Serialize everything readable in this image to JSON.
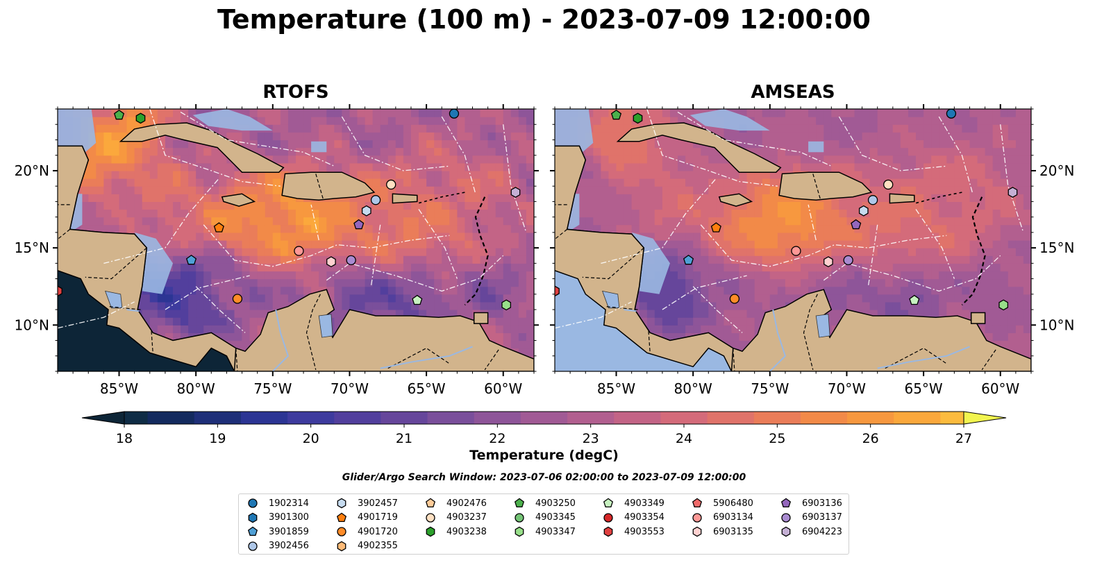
{
  "figure": {
    "title": "Temperature (100 m) - 2023-07-09 12:00:00",
    "search_window": "Glider/Argo Search Window: 2023-07-06 02:00:00 to 2023-07-09 12:00:00",
    "colors": {
      "land": "#d2b48c",
      "ocean": "#9ab8e2",
      "grid": "#ffffff",
      "coast": "#000000"
    }
  },
  "chart_data": [
    {
      "type": "heatmap",
      "title": "RTOFS",
      "xlim": [
        -89,
        -58
      ],
      "ylim": [
        7,
        24
      ],
      "x_ticks": [
        -85,
        -80,
        -75,
        -70,
        -65,
        -60
      ],
      "x_tick_labels": [
        "85°W",
        "80°W",
        "75°W",
        "70°W",
        "65°W",
        "60°W"
      ],
      "y_ticks": [
        10,
        15,
        20
      ],
      "y_tick_labels": [
        "10°N",
        "15°N",
        "20°N"
      ],
      "y_labels_side": "left",
      "grid": true,
      "field_summary": "warm 25-27 degC core across central Caribbean and Yucatan Channel; cool 19-21 degC along Nicaragua/Colombia/Venezuela coasts",
      "floats": [
        {
          "id": "1902314",
          "lon": -63.2,
          "lat": 23.7
        },
        {
          "id": "4903250",
          "lon": -85.0,
          "lat": 23.6
        },
        {
          "id": "4903238",
          "lon": -83.6,
          "lat": 23.4
        },
        {
          "id": "4903237",
          "lon": -67.3,
          "lat": 19.1
        },
        {
          "id": "6904223",
          "lon": -59.2,
          "lat": 18.6
        },
        {
          "id": "3902456",
          "lon": -68.3,
          "lat": 18.1
        },
        {
          "id": "3902457",
          "lon": -68.9,
          "lat": 17.4
        },
        {
          "id": "6903136",
          "lon": -69.4,
          "lat": 16.5
        },
        {
          "id": "4901719",
          "lon": -78.5,
          "lat": 16.3
        },
        {
          "id": "6903134",
          "lon": -73.3,
          "lat": 14.8
        },
        {
          "id": "6903135",
          "lon": -71.2,
          "lat": 14.1
        },
        {
          "id": "6903137",
          "lon": -69.9,
          "lat": 14.2
        },
        {
          "id": "3901859",
          "lon": -80.3,
          "lat": 14.2
        },
        {
          "id": "4901720",
          "lon": -77.3,
          "lat": 11.7
        },
        {
          "id": "4903349",
          "lon": -65.6,
          "lat": 11.6
        },
        {
          "id": "4903347",
          "lon": -59.8,
          "lat": 11.3
        },
        {
          "id": "4903553",
          "lon": -89.0,
          "lat": 12.2
        }
      ]
    },
    {
      "type": "heatmap",
      "title": "AMSEAS",
      "xlim": [
        -89,
        -58
      ],
      "ylim": [
        7,
        24
      ],
      "x_ticks": [
        -85,
        -80,
        -75,
        -70,
        -65,
        -60
      ],
      "x_tick_labels": [
        "85°W",
        "80°W",
        "75°W",
        "70°W",
        "65°W",
        "60°W"
      ],
      "y_ticks": [
        10,
        15,
        20
      ],
      "y_tick_labels": [
        "10°N",
        "15°N",
        "20°N"
      ],
      "y_labels_side": "right",
      "grid": true,
      "field_summary": "smoother field; warm 25-27 degC core in central Caribbean; cooler 20-22 degC near southern coasts",
      "floats": [
        {
          "id": "1902314",
          "lon": -63.2,
          "lat": 23.7
        },
        {
          "id": "4903250",
          "lon": -85.0,
          "lat": 23.6
        },
        {
          "id": "4903238",
          "lon": -83.6,
          "lat": 23.4
        },
        {
          "id": "4903237",
          "lon": -67.3,
          "lat": 19.1
        },
        {
          "id": "6904223",
          "lon": -59.2,
          "lat": 18.6
        },
        {
          "id": "3902456",
          "lon": -68.3,
          "lat": 18.1
        },
        {
          "id": "3902457",
          "lon": -68.9,
          "lat": 17.4
        },
        {
          "id": "6903136",
          "lon": -69.4,
          "lat": 16.5
        },
        {
          "id": "4901719",
          "lon": -78.5,
          "lat": 16.3
        },
        {
          "id": "6903134",
          "lon": -73.3,
          "lat": 14.8
        },
        {
          "id": "6903135",
          "lon": -71.2,
          "lat": 14.1
        },
        {
          "id": "6903137",
          "lon": -69.9,
          "lat": 14.2
        },
        {
          "id": "3901859",
          "lon": -80.3,
          "lat": 14.2
        },
        {
          "id": "4901720",
          "lon": -77.3,
          "lat": 11.7
        },
        {
          "id": "4903349",
          "lon": -65.6,
          "lat": 11.6
        },
        {
          "id": "4903347",
          "lon": -59.8,
          "lat": 11.3
        },
        {
          "id": "4903553",
          "lon": -89.0,
          "lat": 12.2
        }
      ]
    }
  ],
  "colorbar": {
    "label": "Temperature (degC)",
    "min": 18,
    "max": 27,
    "step": 0.5,
    "extend": "both",
    "ticks": [
      18,
      19,
      20,
      21,
      22,
      23,
      24,
      25,
      26,
      27
    ],
    "colors": [
      "#0f2c45",
      "#132a5e",
      "#1e2f78",
      "#2c3594",
      "#3e3b9e",
      "#523f9d",
      "#66469b",
      "#7a4f9b",
      "#8e5599",
      "#a15a95",
      "#b25f8f",
      "#c36486",
      "#d46b7a",
      "#e0736a",
      "#ea7d59",
      "#f28a48",
      "#f7983f",
      "#fba83c",
      "#fcbb3e",
      "#f9d046",
      "#eff350"
    ],
    "under_color": "#0d2537",
    "over_color": "#f2f54f"
  },
  "legend": {
    "items": [
      {
        "id": "1902314",
        "marker": "circle",
        "color": "#1f77b4"
      },
      {
        "id": "3901300",
        "marker": "hexagon",
        "color": "#1f77b4"
      },
      {
        "id": "3901859",
        "marker": "pentagon",
        "color": "#4fa0d6"
      },
      {
        "id": "3902456",
        "marker": "circle",
        "color": "#aec7e8"
      },
      {
        "id": "3902457",
        "marker": "hexagon",
        "color": "#c6dbef"
      },
      {
        "id": "4901719",
        "marker": "pentagon",
        "color": "#ff7f0e"
      },
      {
        "id": "4901720",
        "marker": "circle",
        "color": "#ff8c28"
      },
      {
        "id": "4902355",
        "marker": "hexagon",
        "color": "#ffbb78"
      },
      {
        "id": "4902476",
        "marker": "pentagon",
        "color": "#ffcc99"
      },
      {
        "id": "4903237",
        "marker": "circle",
        "color": "#ffe0c2"
      },
      {
        "id": "4903238",
        "marker": "hexagon",
        "color": "#2ca02c"
      },
      {
        "id": "4903250",
        "marker": "pentagon",
        "color": "#4cb04c"
      },
      {
        "id": "4903345",
        "marker": "circle",
        "color": "#74c476"
      },
      {
        "id": "4903347",
        "marker": "hexagon",
        "color": "#98df8a"
      },
      {
        "id": "4903349",
        "marker": "pentagon",
        "color": "#c7f2c0"
      },
      {
        "id": "4903354",
        "marker": "circle",
        "color": "#d62728"
      },
      {
        "id": "4903553",
        "marker": "hexagon",
        "color": "#e04040"
      },
      {
        "id": "5906480",
        "marker": "pentagon",
        "color": "#f06a6a"
      },
      {
        "id": "6903134",
        "marker": "circle",
        "color": "#ff9896"
      },
      {
        "id": "6903135",
        "marker": "hexagon",
        "color": "#ffd1d0"
      },
      {
        "id": "6903136",
        "marker": "pentagon",
        "color": "#9467bd"
      },
      {
        "id": "6903137",
        "marker": "circle",
        "color": "#a98bd1"
      },
      {
        "id": "6904223",
        "marker": "hexagon",
        "color": "#c5b0d5"
      }
    ]
  }
}
